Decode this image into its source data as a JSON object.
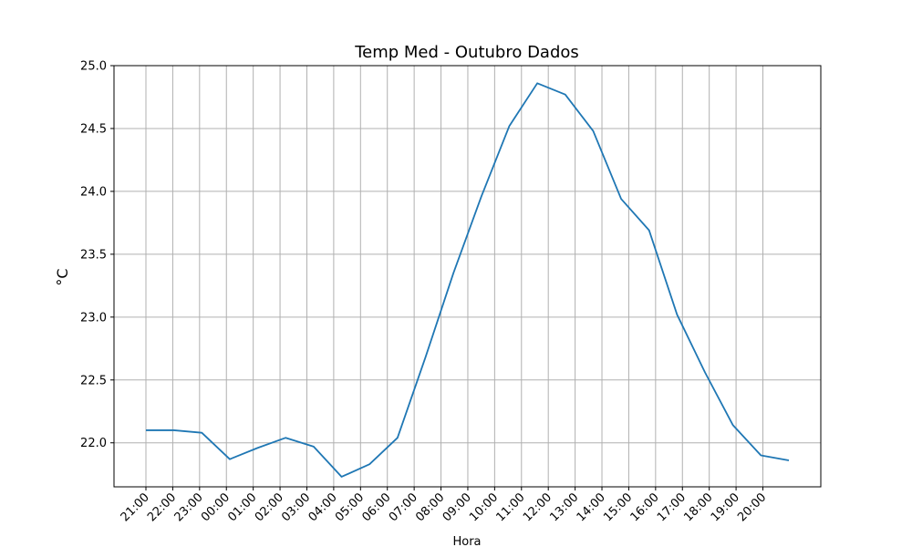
{
  "chart_data": {
    "type": "line",
    "title": "Temp Med - Outubro Dados",
    "xlabel": "Hora",
    "ylabel": "°C",
    "categories": [
      "21:00",
      "22:00",
      "23:00",
      "00:00",
      "01:00",
      "02:00",
      "03:00",
      "04:00",
      "05:00",
      "06:00",
      "07:00",
      "08:00",
      "09:00",
      "10:00",
      "11:00",
      "12:00",
      "13:00",
      "14:00",
      "15:00",
      "16:00",
      "17:00",
      "18:00",
      "19:00",
      "20:00"
    ],
    "series": [
      {
        "color": "#1f77b4",
        "values": [
          22.1,
          22.1,
          22.08,
          21.87,
          21.96,
          22.04,
          21.97,
          21.73,
          21.83,
          22.04,
          22.68,
          23.35,
          23.96,
          24.52,
          24.86,
          24.77,
          24.48,
          23.94,
          23.69,
          23.02,
          22.56,
          22.14,
          21.9,
          21.86
        ]
      }
    ],
    "ylim": [
      21.65,
      25.0
    ],
    "yticks": [
      "22.0",
      "22.5",
      "23.0",
      "23.5",
      "24.0",
      "24.5",
      "25.0"
    ],
    "grid": true,
    "legend": false
  }
}
